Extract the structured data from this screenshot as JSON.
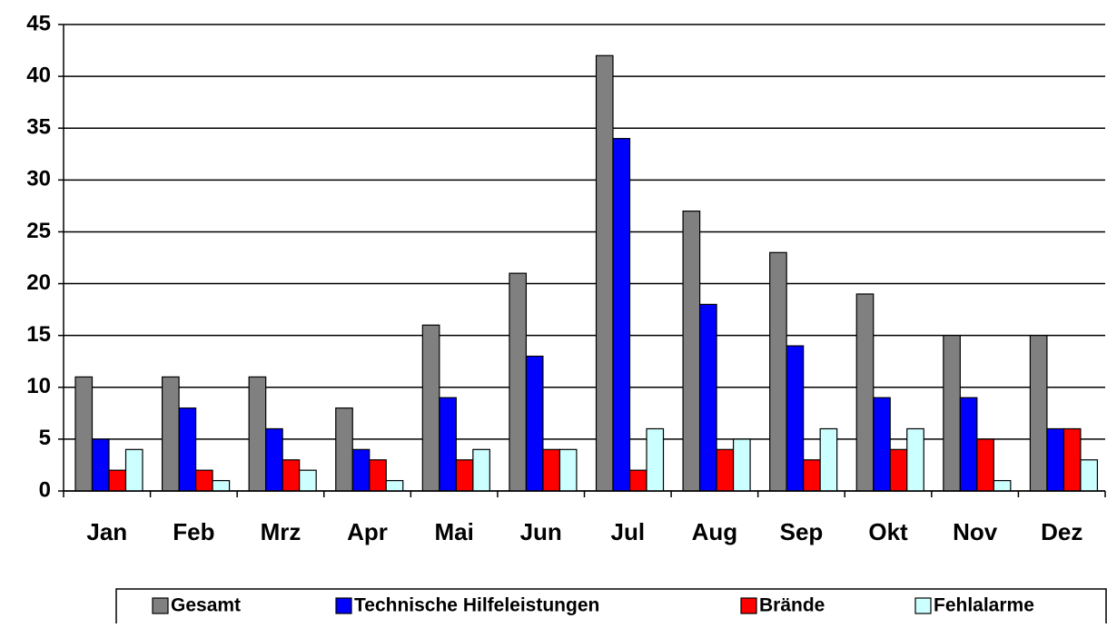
{
  "chart_data": {
    "type": "bar",
    "categories": [
      "Jan",
      "Feb",
      "Mrz",
      "Apr",
      "Mai",
      "Jun",
      "Jul",
      "Aug",
      "Sep",
      "Okt",
      "Nov",
      "Dez"
    ],
    "series": [
      {
        "name": "Gesamt",
        "color": "#808080",
        "values": [
          11,
          11,
          11,
          8,
          16,
          21,
          42,
          27,
          23,
          19,
          15,
          15
        ]
      },
      {
        "name": "Technische Hilfeleistungen",
        "color": "#0000ff",
        "values": [
          5,
          8,
          6,
          4,
          9,
          13,
          34,
          18,
          14,
          9,
          9,
          6
        ]
      },
      {
        "name": "Brände",
        "color": "#ff0000",
        "values": [
          2,
          2,
          3,
          3,
          3,
          4,
          2,
          4,
          3,
          4,
          5,
          6
        ]
      },
      {
        "name": "Fehlalarme",
        "color": "#ccffff",
        "values": [
          4,
          1,
          2,
          1,
          4,
          4,
          6,
          5,
          6,
          6,
          1,
          3
        ]
      }
    ],
    "ylim": [
      0,
      45
    ],
    "yticks": [
      0,
      5,
      10,
      15,
      20,
      25,
      30,
      35,
      40,
      45
    ],
    "grid": true,
    "legend": "bottom"
  }
}
